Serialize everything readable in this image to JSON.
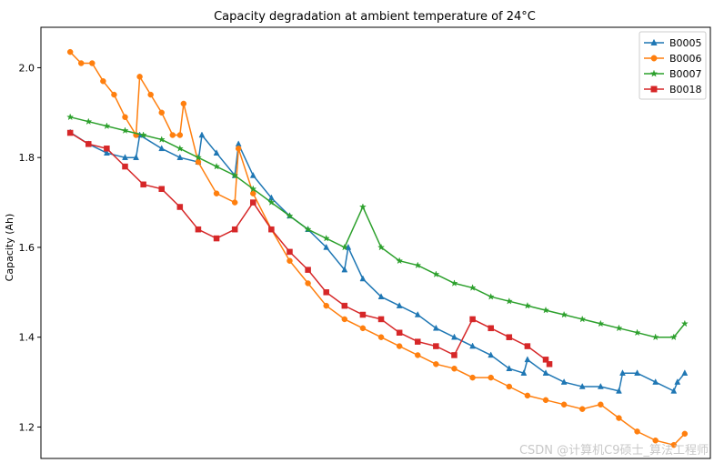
{
  "chart_data": {
    "type": "line",
    "title": "Capacity degradation at ambient temperature of 24°C",
    "xlabel": "",
    "ylabel": "Capacity (Ah)",
    "ylim": [
      1.13,
      2.09
    ],
    "xlim": [
      -8,
      175
    ],
    "yticks": [
      "1.2",
      "1.4",
      "1.6",
      "1.8",
      "2.0"
    ],
    "ytick_values": [
      1.2,
      1.4,
      1.6,
      1.8,
      2.0
    ],
    "legend_position": "top-right",
    "series": [
      {
        "name": "B0005",
        "color": "#1f77b4",
        "marker": "triangle",
        "x": [
          0,
          5,
          10,
          15,
          18,
          19,
          25,
          30,
          35,
          36,
          40,
          45,
          46,
          50,
          55,
          60,
          65,
          70,
          75,
          76,
          80,
          85,
          90,
          95,
          100,
          105,
          110,
          115,
          120,
          124,
          125,
          130,
          135,
          140,
          145,
          150,
          151,
          155,
          160,
          165,
          166,
          168
        ],
        "y": [
          1.856,
          1.83,
          1.81,
          1.8,
          1.8,
          1.85,
          1.82,
          1.8,
          1.79,
          1.85,
          1.81,
          1.76,
          1.83,
          1.76,
          1.71,
          1.67,
          1.64,
          1.6,
          1.55,
          1.6,
          1.53,
          1.49,
          1.47,
          1.45,
          1.42,
          1.4,
          1.38,
          1.36,
          1.33,
          1.32,
          1.35,
          1.32,
          1.3,
          1.29,
          1.29,
          1.28,
          1.32,
          1.32,
          1.3,
          1.28,
          1.3,
          1.32
        ]
      },
      {
        "name": "B0006",
        "color": "#ff7f0e",
        "marker": "circle",
        "x": [
          0,
          3,
          6,
          9,
          12,
          15,
          18,
          19,
          22,
          25,
          28,
          30,
          31,
          35,
          40,
          45,
          46,
          50,
          55,
          60,
          65,
          70,
          75,
          80,
          85,
          90,
          95,
          100,
          105,
          110,
          115,
          120,
          125,
          130,
          135,
          140,
          145,
          150,
          155,
          160,
          165,
          168
        ],
        "y": [
          2.035,
          2.01,
          2.01,
          1.97,
          1.94,
          1.89,
          1.85,
          1.98,
          1.94,
          1.9,
          1.85,
          1.85,
          1.92,
          1.79,
          1.72,
          1.7,
          1.82,
          1.72,
          1.64,
          1.57,
          1.52,
          1.47,
          1.44,
          1.42,
          1.4,
          1.38,
          1.36,
          1.34,
          1.33,
          1.31,
          1.31,
          1.29,
          1.27,
          1.26,
          1.25,
          1.24,
          1.25,
          1.22,
          1.19,
          1.17,
          1.16,
          1.185
        ]
      },
      {
        "name": "B0007",
        "color": "#2ca02c",
        "marker": "star",
        "x": [
          0,
          5,
          10,
          15,
          20,
          25,
          30,
          35,
          40,
          45,
          50,
          55,
          60,
          65,
          70,
          75,
          80,
          85,
          90,
          95,
          100,
          105,
          110,
          115,
          120,
          125,
          130,
          135,
          140,
          145,
          150,
          155,
          160,
          165,
          168
        ],
        "y": [
          1.89,
          1.88,
          1.87,
          1.86,
          1.85,
          1.84,
          1.82,
          1.8,
          1.78,
          1.76,
          1.73,
          1.7,
          1.67,
          1.64,
          1.62,
          1.6,
          1.69,
          1.6,
          1.57,
          1.56,
          1.54,
          1.52,
          1.51,
          1.49,
          1.48,
          1.47,
          1.46,
          1.45,
          1.44,
          1.43,
          1.42,
          1.41,
          1.4,
          1.4,
          1.43
        ]
      },
      {
        "name": "B0018",
        "color": "#d62728",
        "marker": "square",
        "x": [
          0,
          5,
          10,
          15,
          20,
          25,
          30,
          35,
          40,
          45,
          50,
          55,
          60,
          65,
          70,
          75,
          80,
          85,
          90,
          95,
          100,
          105,
          110,
          115,
          120,
          125,
          130,
          131
        ],
        "y": [
          1.855,
          1.83,
          1.82,
          1.78,
          1.74,
          1.73,
          1.69,
          1.64,
          1.62,
          1.64,
          1.7,
          1.64,
          1.59,
          1.55,
          1.5,
          1.47,
          1.45,
          1.44,
          1.41,
          1.39,
          1.38,
          1.36,
          1.44,
          1.42,
          1.4,
          1.38,
          1.35,
          1.34
        ]
      }
    ]
  },
  "watermark": "CSDN @计算机C9硕士_算法工程师"
}
